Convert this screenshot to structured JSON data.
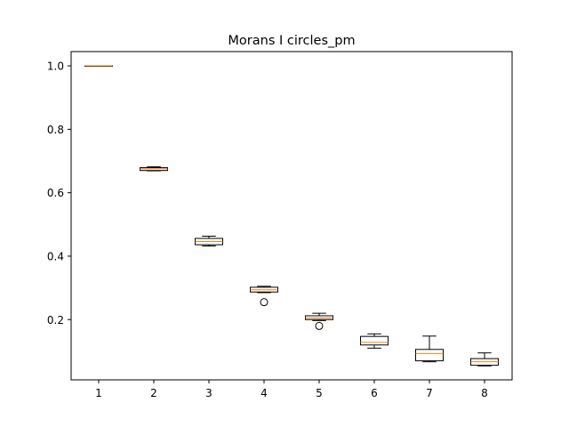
{
  "chart_data": {
    "type": "boxplot",
    "title": "Morans I circles_pm",
    "xlabel": "",
    "ylabel": "",
    "categories": [
      "1",
      "2",
      "3",
      "4",
      "5",
      "6",
      "7",
      "8"
    ],
    "ylim": [
      0.01,
      1.045
    ],
    "yticks": [
      0.2,
      0.4,
      0.6,
      0.8,
      1.0
    ],
    "ytick_labels": [
      "0.2",
      "0.4",
      "0.6",
      "0.8",
      "1.0"
    ],
    "grid": false,
    "box_color": "#000000",
    "median_color": "#ff7f0e",
    "series": [
      {
        "whislo": 0.999,
        "q1": 0.9995,
        "med": 1.0,
        "q3": 1.0,
        "whishi": 1.0,
        "fliers": []
      },
      {
        "whislo": 0.669,
        "q1": 0.67,
        "med": 0.675,
        "q3": 0.679,
        "whishi": 0.682,
        "fliers": []
      },
      {
        "whislo": 0.432,
        "q1": 0.436,
        "med": 0.446,
        "q3": 0.456,
        "whishi": 0.463,
        "fliers": []
      },
      {
        "whislo": 0.285,
        "q1": 0.287,
        "med": 0.294,
        "q3": 0.302,
        "whishi": 0.305,
        "fliers": [
          0.255
        ]
      },
      {
        "whislo": 0.197,
        "q1": 0.2,
        "med": 0.205,
        "q3": 0.212,
        "whishi": 0.22,
        "fliers": [
          0.18
        ]
      },
      {
        "whislo": 0.11,
        "q1": 0.12,
        "med": 0.128,
        "q3": 0.147,
        "whishi": 0.155,
        "fliers": []
      },
      {
        "whislo": 0.067,
        "q1": 0.07,
        "med": 0.093,
        "q3": 0.106,
        "whishi": 0.148,
        "fliers": []
      },
      {
        "whislo": 0.054,
        "q1": 0.056,
        "med": 0.067,
        "q3": 0.077,
        "whishi": 0.095,
        "fliers": []
      }
    ]
  }
}
